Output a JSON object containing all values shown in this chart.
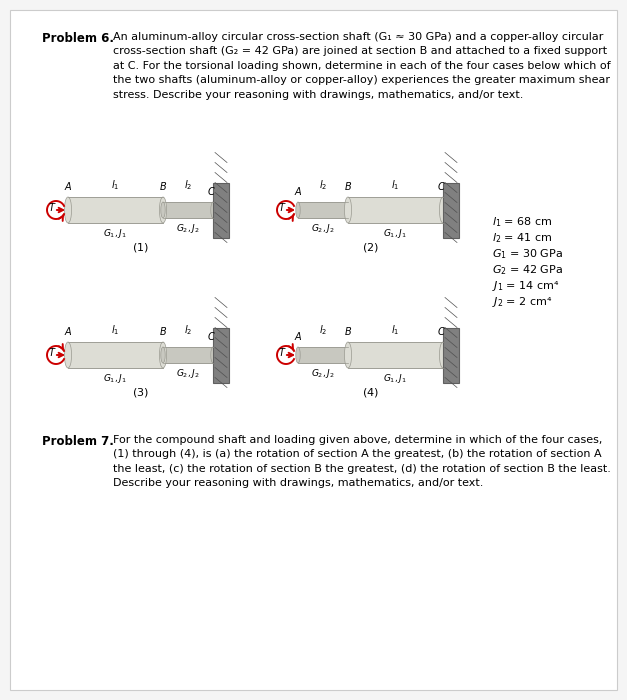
{
  "page_bg": "#f5f5f5",
  "shaft_color_large": "#ddddd5",
  "shaft_color_small": "#c8c8c0",
  "wall_color": "#808080",
  "wall_color_dark": "#606060",
  "arrow_color": "#cc0000",
  "problem6_label": "Problem 6.",
  "problem6_text": "An aluminum-alloy circular cross-section shaft (G₁ ≈ 30 GPa) and a copper-alloy circular\ncross-section shaft (G₂ = 42 GPa) are joined at section B and attached to a fixed support\nat C. For the torsional loading shown, determine in each of the four cases below which of\nthe two shafts (aluminum-alloy or copper-alloy) experiences the greater maximum shear\nstress. Describe your reasoning with drawings, mathematics, and/or text.",
  "problem7_label": "Problem 7.",
  "problem7_text": "For the compound shaft and loading given above, determine in which of the four cases,\n(1) through (4), is (a) the rotation of section A the greatest, (b) the rotation of section A\nthe least, (c) the rotation of section B the greatest, (d) the rotation of section B the least.\nDescribe your reasoning with drawings, mathematics, and/or text.",
  "params_raw": [
    [
      "l",
      "1",
      "68 cm"
    ],
    [
      "l",
      "2",
      "41 cm"
    ],
    [
      "G",
      "1",
      "30 GPa"
    ],
    [
      "G",
      "2",
      "42 GPa"
    ],
    [
      "J",
      "1",
      "14 cm⁴"
    ],
    [
      "J",
      "2",
      "2 cm⁴"
    ]
  ]
}
